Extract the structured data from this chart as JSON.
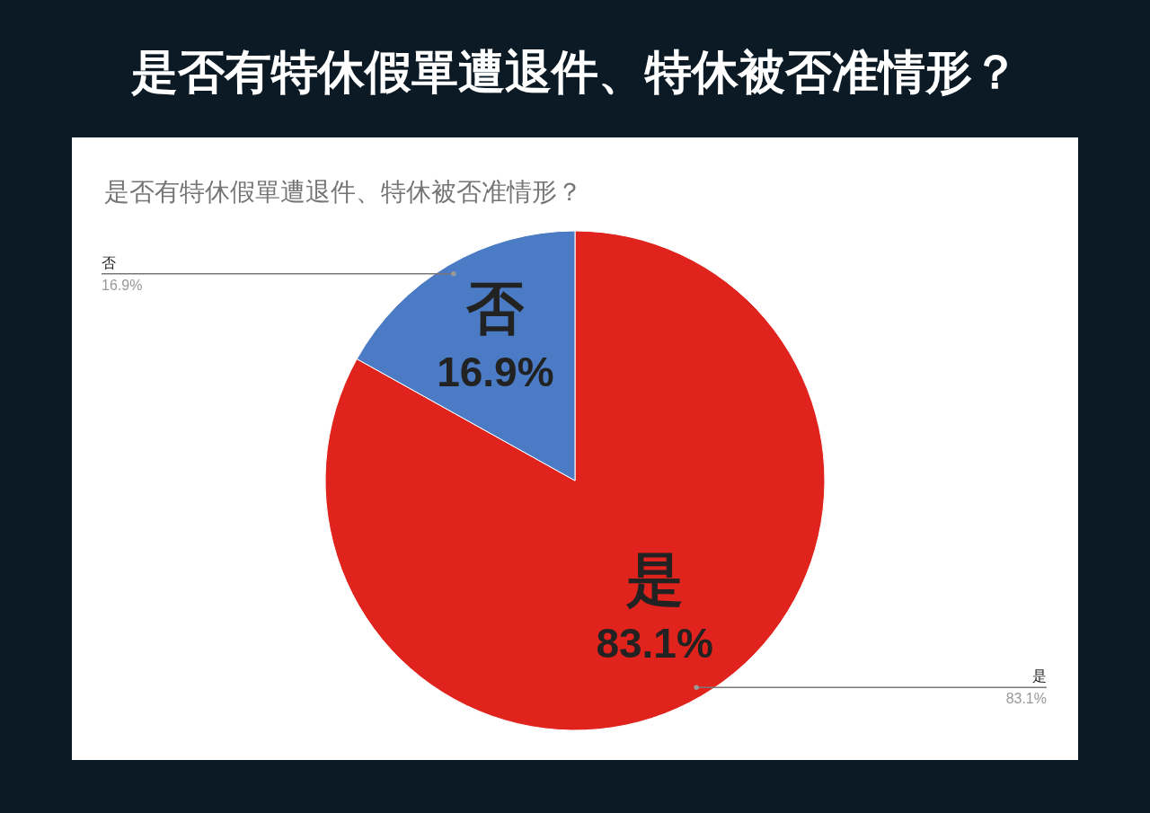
{
  "chart_data": {
    "type": "pie",
    "title": "是否有特休假單遭退件、特休被否准情形？",
    "subtitle": "是否有特休假單遭退件、特休被否准情形？",
    "categories": [
      "是",
      "否"
    ],
    "values": [
      83.1,
      16.9
    ],
    "colors": [
      "#e0231c",
      "#4a7bc4"
    ],
    "value_labels": [
      "83.1%",
      "16.9%"
    ]
  }
}
